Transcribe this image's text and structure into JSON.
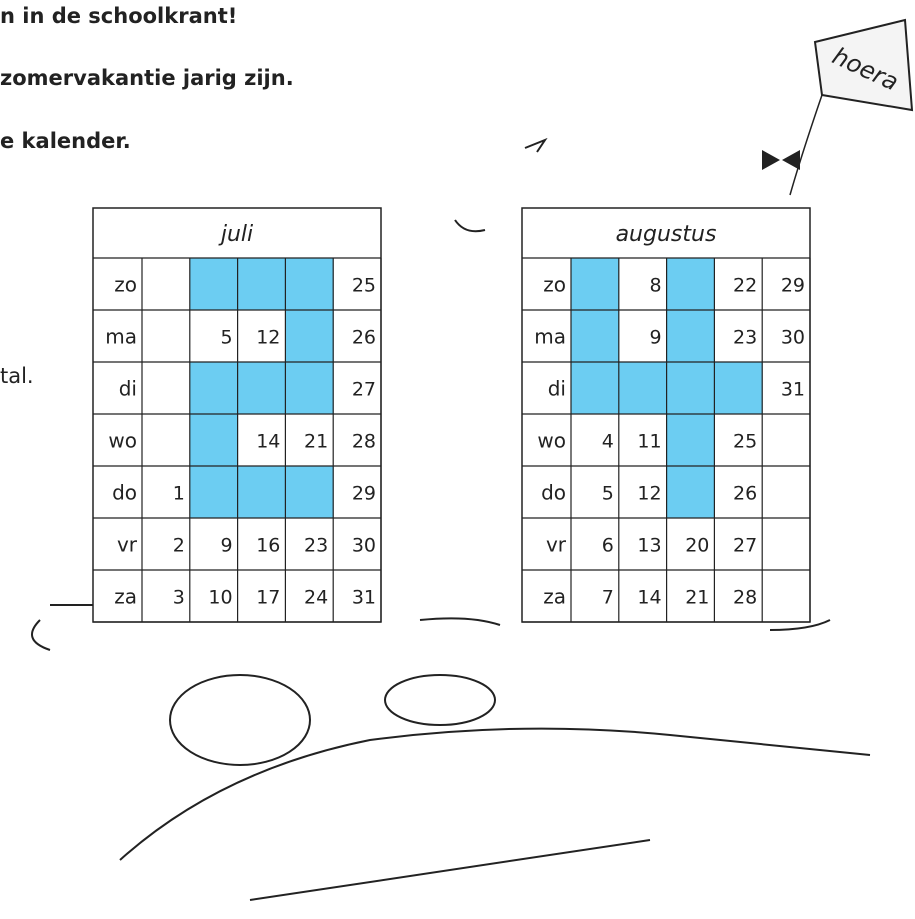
{
  "header": {
    "lines": [
      "n in de schoolkrant!",
      "zomervakantie jarig zijn.",
      "e kalender."
    ],
    "side_text": "tal."
  },
  "kite_text": "hoera",
  "calendars": [
    {
      "month": "juli",
      "days": [
        "zo",
        "ma",
        "di",
        "wo",
        "do",
        "vr",
        "za"
      ],
      "cells": [
        [
          null,
          null,
          null,
          null,
          25
        ],
        [
          null,
          5,
          12,
          null,
          26
        ],
        [
          null,
          null,
          null,
          null,
          27
        ],
        [
          null,
          null,
          14,
          21,
          28
        ],
        [
          1,
          null,
          null,
          null,
          29
        ],
        [
          2,
          9,
          16,
          23,
          30
        ],
        [
          3,
          10,
          17,
          24,
          31
        ]
      ],
      "shaded": [
        [
          false,
          true,
          true,
          true,
          false
        ],
        [
          false,
          false,
          false,
          true,
          false
        ],
        [
          false,
          true,
          true,
          true,
          false
        ],
        [
          false,
          true,
          false,
          false,
          false
        ],
        [
          false,
          true,
          true,
          true,
          false
        ],
        [
          false,
          false,
          false,
          false,
          false
        ],
        [
          false,
          false,
          false,
          false,
          false
        ]
      ],
      "shade_color": "#6ccdf2"
    },
    {
      "month": "augustus",
      "days": [
        "zo",
        "ma",
        "di",
        "wo",
        "do",
        "vr",
        "za"
      ],
      "cells": [
        [
          null,
          8,
          null,
          22,
          29
        ],
        [
          null,
          9,
          null,
          23,
          30
        ],
        [
          null,
          null,
          null,
          null,
          31
        ],
        [
          4,
          11,
          null,
          25,
          null
        ],
        [
          5,
          12,
          null,
          26,
          null
        ],
        [
          6,
          13,
          20,
          27,
          null
        ],
        [
          7,
          14,
          21,
          28,
          null
        ]
      ],
      "shaded": [
        [
          true,
          false,
          true,
          false,
          false
        ],
        [
          true,
          false,
          true,
          false,
          false
        ],
        [
          true,
          true,
          true,
          true,
          false
        ],
        [
          false,
          false,
          true,
          false,
          false
        ],
        [
          false,
          false,
          true,
          false,
          false
        ],
        [
          false,
          false,
          false,
          false,
          false
        ],
        [
          false,
          false,
          false,
          false,
          false
        ]
      ],
      "shade_color": "#6ccdf2"
    }
  ]
}
